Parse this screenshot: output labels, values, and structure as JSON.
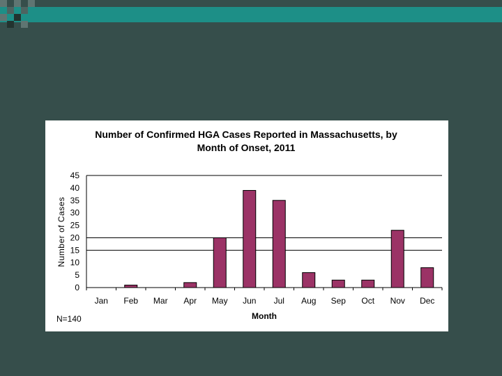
{
  "chart_data": {
    "type": "bar",
    "title": "Number of Confirmed HGA Cases Reported in Massachusetts, by",
    "subtitle": "Month of Onset, 2011",
    "xlabel": "Month",
    "ylabel": "Number of Cases",
    "categories": [
      "Jan",
      "Feb",
      "Mar",
      "Apr",
      "May",
      "Jun",
      "Jul",
      "Aug",
      "Sep",
      "Oct",
      "Nov",
      "Dec"
    ],
    "values": [
      0,
      1,
      0,
      2,
      20,
      39,
      35,
      6,
      3,
      3,
      23,
      8
    ],
    "ylim": [
      0,
      45
    ],
    "yticks": [
      "0",
      "5",
      "10",
      "15",
      "20",
      "25",
      "30",
      "35",
      "40",
      "45"
    ],
    "grid_lines": [
      15,
      20,
      45
    ],
    "bar_color": "#9b3366",
    "note": "N=140"
  }
}
